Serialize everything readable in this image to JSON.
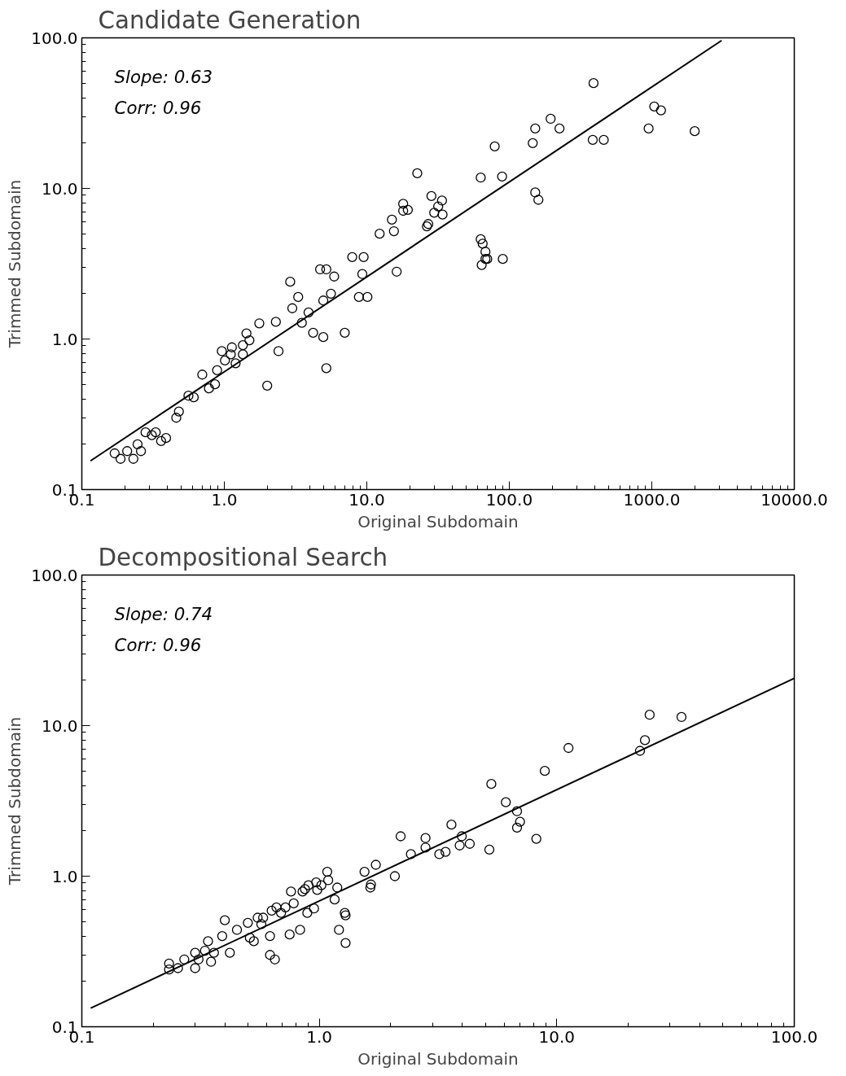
{
  "chart_data": [
    {
      "type": "scatter",
      "title": "Candidate Generation",
      "xlabel": "Original Subdomain",
      "ylabel": "Trimmed Subdomain",
      "log": "xy",
      "grid": false,
      "marker": "circle",
      "annotations": [
        "Slope: 0.63",
        "Corr: 0.96"
      ],
      "xlim": [
        0.1,
        10000
      ],
      "ylim": [
        0.1,
        100
      ],
      "xticks": [
        {
          "value": 0.1,
          "label": "0.1"
        },
        {
          "value": 1,
          "label": "1.0"
        },
        {
          "value": 10,
          "label": "10.0"
        },
        {
          "value": 100,
          "label": "100.0"
        },
        {
          "value": 1000,
          "label": "1000.0"
        },
        {
          "value": 10000,
          "label": "10000.0"
        }
      ],
      "yticks": [
        {
          "value": 0.1,
          "label": "0.1"
        },
        {
          "value": 1,
          "label": "1.0"
        },
        {
          "value": 10,
          "label": "10.0"
        },
        {
          "value": 100,
          "label": "100.0"
        }
      ],
      "series": [
        {
          "color": "#000000",
          "x": [
            0.17,
            0.187,
            0.208,
            0.23,
            0.246,
            0.26,
            0.28,
            0.31,
            0.33,
            0.36,
            0.39,
            0.46,
            0.48,
            0.56,
            0.61,
            0.78,
            0.86,
            0.7,
            0.89,
            1.01,
            0.96,
            1.11,
            1.13,
            1.2,
            1.35,
            1.43,
            1.5,
            1.35,
            1.76,
            2.0,
            2.3,
            2.4,
            2.9,
            3.0,
            3.3,
            3.5,
            3.9,
            4.2,
            4.7,
            4.95,
            4.95,
            5.2,
            5.2,
            5.6,
            5.9,
            7.0,
            7.9,
            8.8,
            9.5,
            9.3,
            10.1,
            12.3,
            15.0,
            15.5,
            16.2,
            18.0,
            18.0,
            19.4,
            22.6,
            26.4,
            27.0,
            28.4,
            29.7,
            31.7,
            33.7,
            34,
            63,
            63,
            65,
            68,
            68,
            64,
            70,
            90,
            79,
            89,
            146,
            152,
            195,
            225,
            152,
            160,
            385,
            390,
            460,
            950,
            1040,
            1160,
            2000
          ],
          "values": [
            0.174,
            0.16,
            0.18,
            0.16,
            0.2,
            0.18,
            0.24,
            0.23,
            0.24,
            0.21,
            0.22,
            0.3,
            0.33,
            0.42,
            0.41,
            0.47,
            0.5,
            0.58,
            0.62,
            0.72,
            0.83,
            0.79,
            0.88,
            0.69,
            0.91,
            1.09,
            0.98,
            0.79,
            1.27,
            0.49,
            1.3,
            0.83,
            2.4,
            1.6,
            1.9,
            1.28,
            1.5,
            1.1,
            2.9,
            1.8,
            1.03,
            2.9,
            0.64,
            2.0,
            2.6,
            1.1,
            3.5,
            1.9,
            3.5,
            2.7,
            1.9,
            5.0,
            6.2,
            5.2,
            2.8,
            7.9,
            7.1,
            7.2,
            12.6,
            5.6,
            5.8,
            8.9,
            6.9,
            7.6,
            8.3,
            6.7,
            11.8,
            4.6,
            4.3,
            3.8,
            3.4,
            3.1,
            3.4,
            3.4,
            19,
            12,
            20,
            25,
            29,
            25,
            9.4,
            8.4,
            21,
            50,
            21,
            25,
            35,
            33,
            24
          ]
        },
        {
          "type": "line",
          "color": "#000000",
          "marker": "none",
          "x": [
            0.115,
            3090
          ],
          "values": [
            0.155,
            96
          ]
        }
      ]
    },
    {
      "type": "scatter",
      "title": "Decompositional Search",
      "xlabel": "Original Subdomain",
      "ylabel": "Trimmed Subdomain",
      "log": "xy",
      "grid": false,
      "marker": "circle",
      "annotations": [
        "Slope: 0.74",
        "Corr: 0.96"
      ],
      "xlim": [
        0.1,
        100
      ],
      "ylim": [
        0.1,
        100
      ],
      "xticks": [
        {
          "value": 0.1,
          "label": "0.1"
        },
        {
          "value": 1,
          "label": "1.0"
        },
        {
          "value": 10,
          "label": "10.0"
        },
        {
          "value": 100,
          "label": "100.0"
        }
      ],
      "yticks": [
        {
          "value": 0.1,
          "label": "0.1"
        },
        {
          "value": 1,
          "label": "1.0"
        },
        {
          "value": 10,
          "label": "10.0"
        },
        {
          "value": 100,
          "label": "100.0"
        }
      ],
      "series": [
        {
          "color": "#000000",
          "x": [
            0.233,
            0.233,
            0.254,
            0.27,
            0.3,
            0.31,
            0.3,
            0.33,
            0.34,
            0.35,
            0.36,
            0.39,
            0.4,
            0.42,
            0.45,
            0.5,
            0.51,
            0.53,
            0.55,
            0.57,
            0.58,
            0.62,
            0.62,
            0.65,
            0.63,
            0.66,
            0.69,
            0.72,
            0.75,
            0.76,
            0.78,
            0.83,
            0.85,
            0.87,
            0.89,
            0.9,
            0.95,
            0.97,
            0.98,
            1.02,
            1.08,
            1.09,
            1.16,
            1.19,
            1.21,
            1.28,
            1.29,
            1.29,
            1.55,
            1.64,
            1.65,
            1.73,
            2.08,
            2.2,
            2.43,
            2.8,
            2.8,
            3.2,
            3.4,
            3.6,
            3.9,
            3.98,
            4.3,
            5.2,
            5.3,
            6.1,
            6.8,
            7.0,
            6.8,
            8.2,
            8.9,
            11.2,
            22.4,
            23.5,
            24.6,
            33.5
          ],
          "values": [
            0.263,
            0.24,
            0.245,
            0.28,
            0.31,
            0.28,
            0.245,
            0.32,
            0.37,
            0.27,
            0.31,
            0.4,
            0.51,
            0.31,
            0.44,
            0.49,
            0.39,
            0.37,
            0.53,
            0.48,
            0.53,
            0.4,
            0.3,
            0.28,
            0.59,
            0.62,
            0.57,
            0.62,
            0.41,
            0.79,
            0.66,
            0.44,
            0.79,
            0.82,
            0.57,
            0.87,
            0.61,
            0.91,
            0.81,
            0.87,
            1.07,
            0.94,
            0.7,
            0.84,
            0.44,
            0.57,
            0.55,
            0.36,
            1.07,
            0.84,
            0.88,
            1.19,
            1.0,
            1.84,
            1.4,
            1.79,
            1.55,
            1.4,
            1.45,
            2.2,
            1.6,
            1.84,
            1.64,
            1.5,
            4.1,
            3.1,
            2.7,
            2.3,
            2.1,
            1.77,
            5.0,
            7.1,
            6.8,
            8.0,
            11.8,
            11.4
          ]
        },
        {
          "type": "line",
          "color": "#000000",
          "marker": "none",
          "x": [
            0.109,
            100
          ],
          "values": [
            0.133,
            20.6
          ]
        }
      ]
    }
  ]
}
